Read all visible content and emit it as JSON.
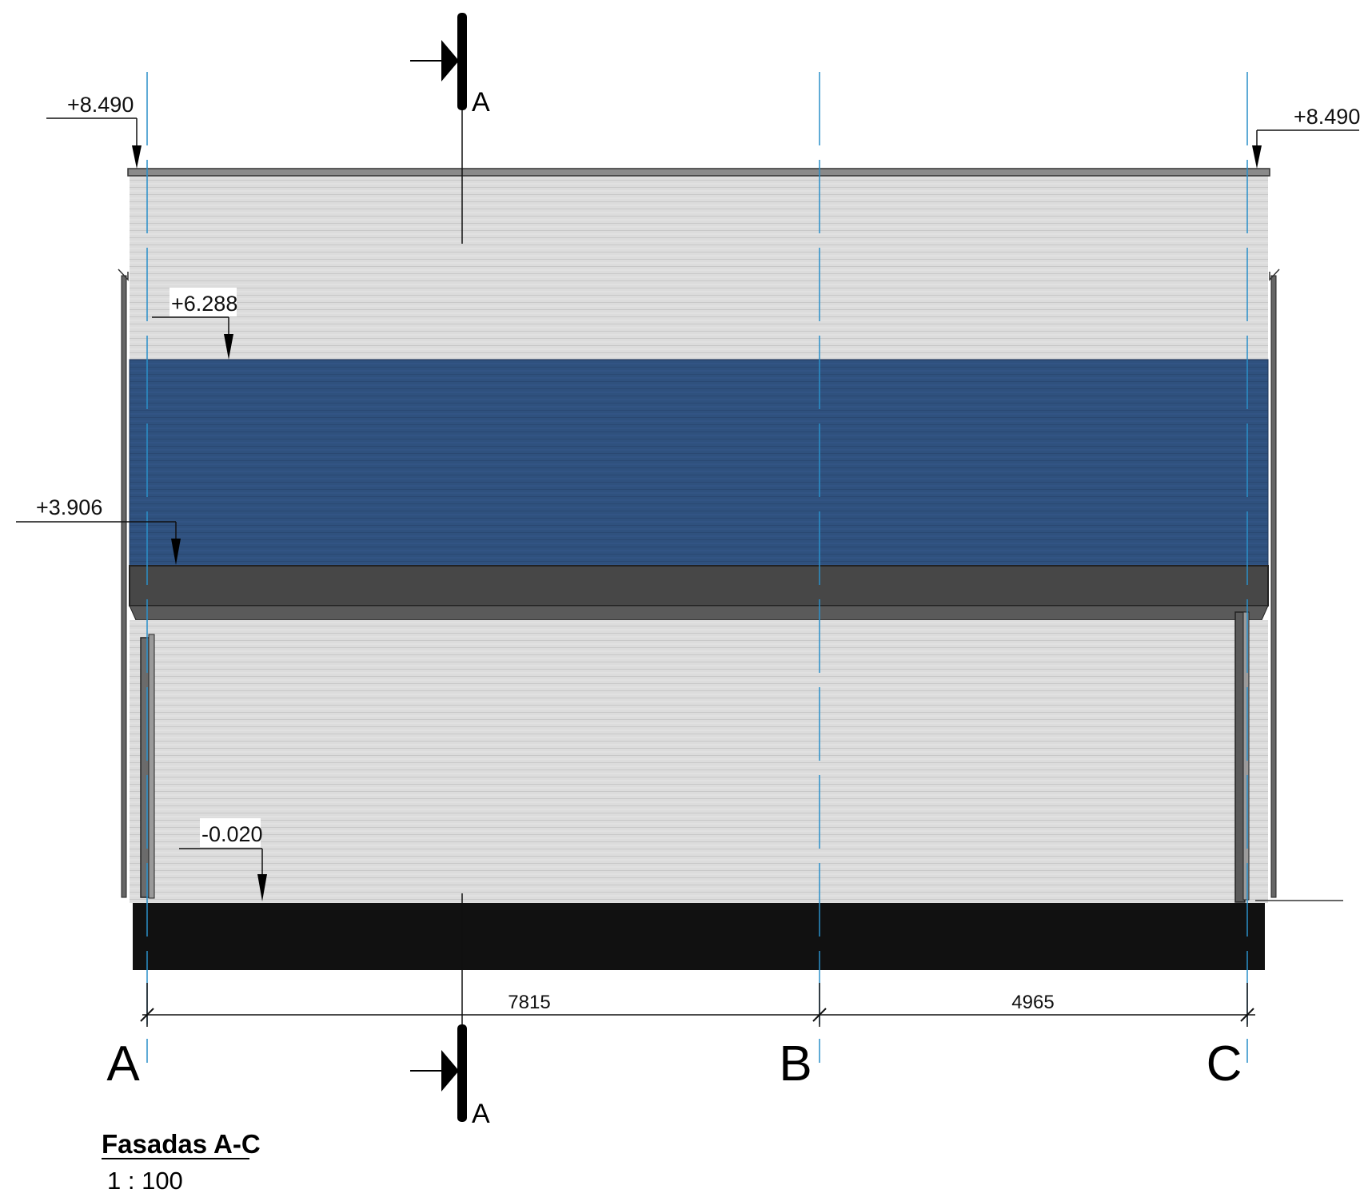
{
  "drawing": {
    "title": "Fasadas A-C",
    "scale": "1 : 100"
  },
  "levels": {
    "top_left": "+8.490",
    "top_right": "+8.490",
    "mid_upper": "+6.288",
    "mid_lower": "+3.906",
    "ground": "-0.020"
  },
  "grid_axes": [
    "A",
    "B",
    "C"
  ],
  "dimensions": [
    "7815",
    "4965"
  ],
  "section_marker": {
    "label_top": "A",
    "label_bottom": "A"
  },
  "colors": {
    "cladding_light": "#dcdcdc",
    "cladding_blue": "#2f517e",
    "band_dark": "#474747",
    "plinth": "#111111",
    "grid_line": "#2a8fc9"
  }
}
